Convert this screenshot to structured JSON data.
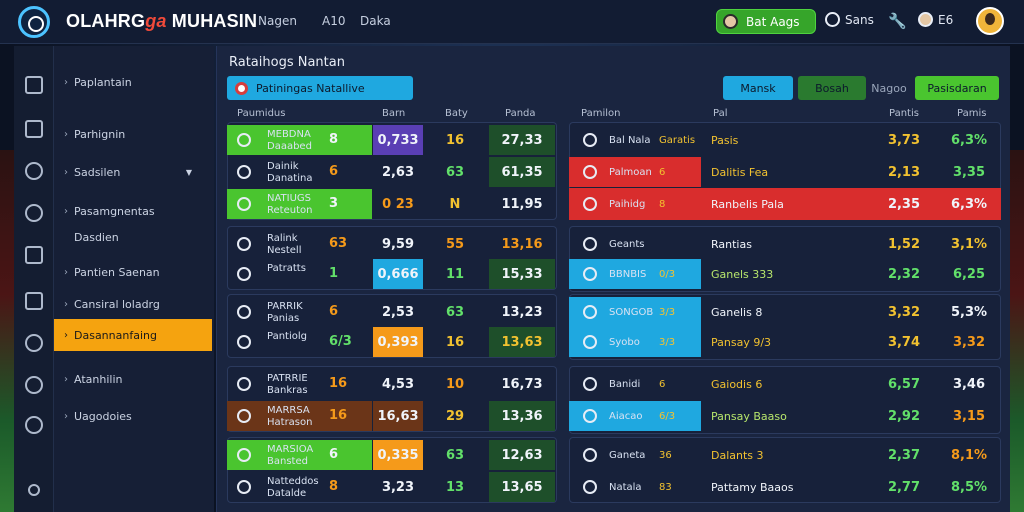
{
  "brand": {
    "part1": "OLAHRG",
    "part2": "ga",
    "part3": " MUHASIN"
  },
  "nav": [
    "Nagen",
    "A10",
    "Daka"
  ],
  "top": {
    "green_pill": "Bat Aags",
    "item1": "Sans",
    "item3": "E6"
  },
  "sidebar": [
    {
      "label": "Paplantain"
    },
    {
      "label": "Parhignin"
    },
    {
      "label": "Sadsilen"
    },
    {
      "label": "Pasamgnentas"
    },
    {
      "label": "Dasdien"
    },
    {
      "label": "Pantien Saenan"
    },
    {
      "label": "Cansiral loladrg"
    },
    {
      "label": "Dasannanfaing"
    },
    {
      "label": "Atanhilin"
    },
    {
      "label": "Uagodoies"
    }
  ],
  "main": {
    "title": "Rataihogs Nantan",
    "search_label": "Patiningas Natallive",
    "buttons": [
      "Mansk",
      "Bosah",
      "Nagoo",
      "Pasisdaran"
    ],
    "left_headers": [
      "Paumidus",
      "Barn",
      "Baty",
      "Panda"
    ],
    "right_headers": [
      "Pamilon",
      "Pal",
      "Pantis",
      "Pamis"
    ]
  },
  "left_rows": [
    {
      "team": "MEBDNA",
      "sub": "Daaabed",
      "a": "8",
      "b": "0,733",
      "c": "16",
      "d": "27,33"
    },
    {
      "team": "Dainik",
      "sub": "Danatina",
      "a": "6",
      "b": "2,63",
      "c": "63",
      "d": "61,35"
    },
    {
      "team": "NATIUGS",
      "sub": "Reteuton",
      "a": "3",
      "b": "0 23",
      "c": "N",
      "d": "11,95"
    },
    {
      "team": "Ralink",
      "sub": "Nestell",
      "a": "63",
      "b": "9,59",
      "c": "55",
      "d": "13,16"
    },
    {
      "team": "Patratts",
      "sub": "",
      "a": "1",
      "b": "0,666",
      "c": "11",
      "d": "15,33"
    },
    {
      "team": "PARRIK",
      "sub": "Panias",
      "a": "6",
      "b": "2,53",
      "c": "63",
      "d": "13,23"
    },
    {
      "team": "Pantiolg",
      "sub": "",
      "a": "6/3",
      "b": "0,393",
      "c": "16",
      "d": "13,63"
    },
    {
      "team": "PATRRIE",
      "sub": "Bankras",
      "a": "16",
      "b": "4,53",
      "c": "10",
      "d": "16,73"
    },
    {
      "team": "MARRSA",
      "sub": "Hatrason",
      "a": "16",
      "b": "16,63",
      "c": "29",
      "d": "13,36"
    },
    {
      "team": "MARSIOA",
      "sub": "Bansted",
      "a": "6",
      "b": "0,335",
      "c": "63",
      "d": "12,63"
    },
    {
      "team": "Natteddos",
      "sub": "Datalde",
      "a": "8",
      "b": "3,23",
      "c": "13",
      "d": "13,65"
    }
  ],
  "right_rows": [
    {
      "team": "Bal Nala",
      "sub": "Garatis",
      "b": "Pasis",
      "c": "3,73",
      "d": "6,3%"
    },
    {
      "team": "Palmoan",
      "sub": "6",
      "b": "Dalitis Fea",
      "c": "2,13",
      "d": "3,35"
    },
    {
      "team": "Paihidg",
      "sub": "8",
      "b": "Ranbelis Pala",
      "c": "2,35",
      "d": "6,3%"
    },
    {
      "team": "Geants",
      "sub": "",
      "b": "Rantias",
      "c": "1,52",
      "d": "3,1%"
    },
    {
      "team": "BBNBIS",
      "sub": "0/3",
      "b": "Ganels 333",
      "c": "2,32",
      "d": "6,25"
    },
    {
      "team": "SONGOB",
      "sub": "3/3",
      "b": "Ganelis 8",
      "c": "3,32",
      "d": "5,3%"
    },
    {
      "team": "Syobo",
      "sub": "3/3",
      "b": "Pansay 9/3",
      "c": "3,74",
      "d": "3,32"
    },
    {
      "team": "Banidi",
      "sub": "6",
      "b": "Gaiodis 6",
      "c": "6,57",
      "d": "3,46"
    },
    {
      "team": "Aiacao",
      "sub": "6/3",
      "b": "Pansay Baaso",
      "c": "2,92",
      "d": "3,15"
    },
    {
      "team": "Ganeta",
      "sub": "36",
      "b": "Dalants 3",
      "c": "2,37",
      "d": "8,1%"
    },
    {
      "team": "Natala",
      "sub": "83",
      "b": "Pattamy Baaos",
      "c": "2,77",
      "d": "8,5%"
    }
  ]
}
